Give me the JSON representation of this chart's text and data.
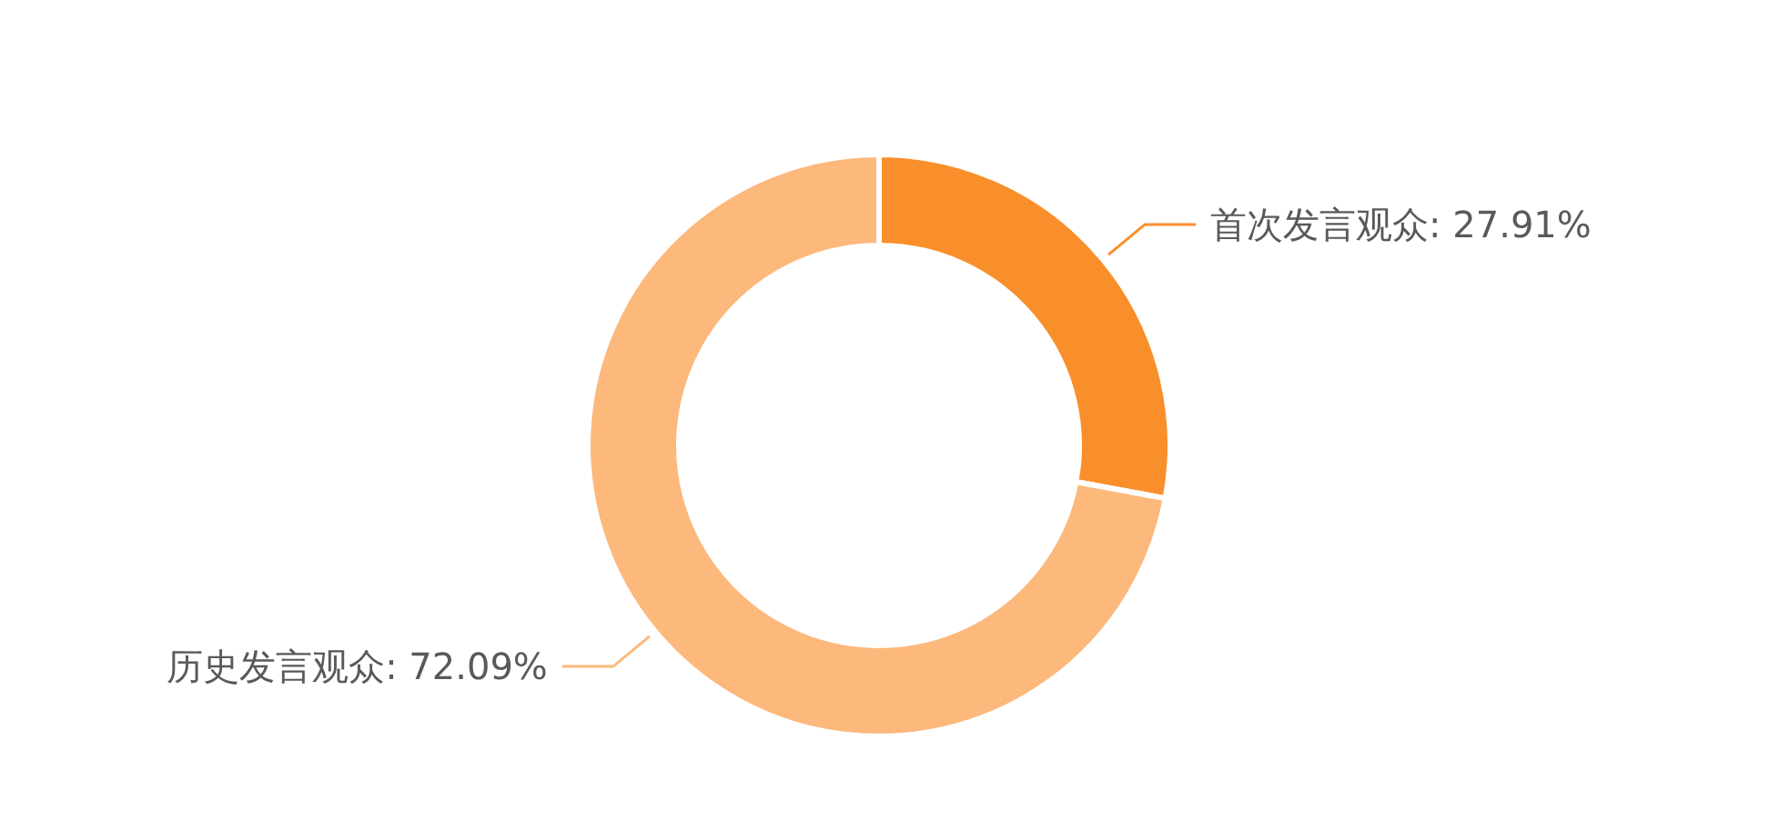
{
  "chart_data": {
    "type": "donut",
    "categories": [
      "首次发言观众",
      "历史发言观众"
    ],
    "values": [
      27.91,
      72.09
    ],
    "colors": [
      "#f98f2b",
      "#fdb87c"
    ],
    "value_labels": [
      "27.91%",
      "72.09%"
    ]
  }
}
